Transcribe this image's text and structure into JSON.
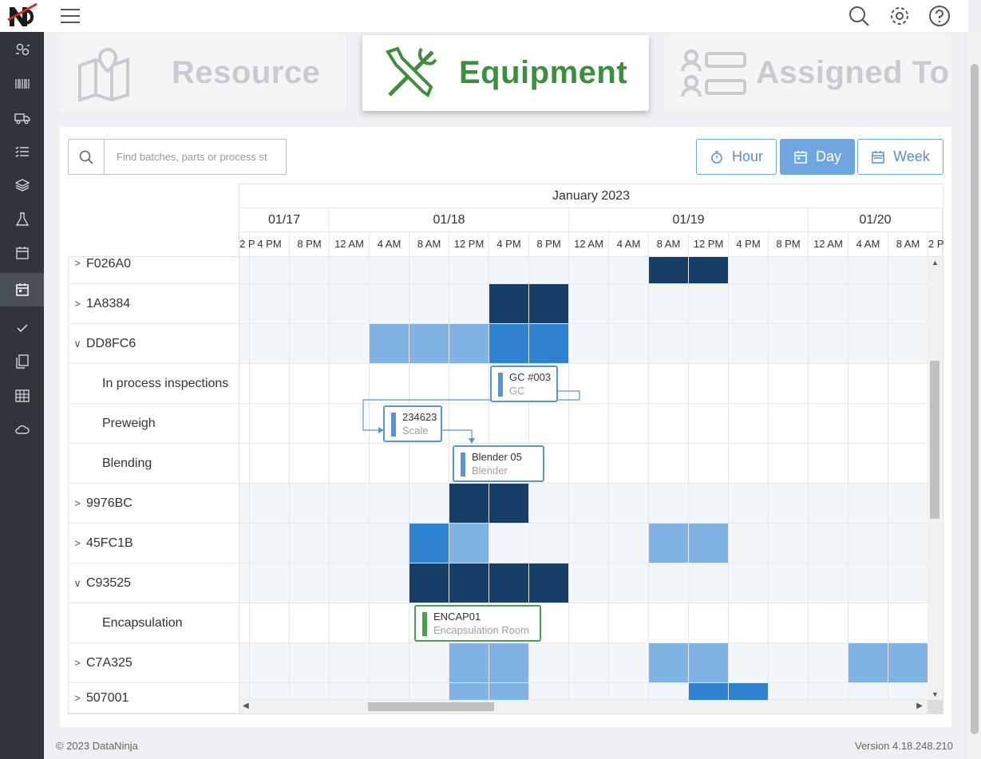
{
  "tabs": {
    "resource": "Resource",
    "equipment": "Equipment",
    "assigned": "Assigned To"
  },
  "search": {
    "placeholder": "Find batches, parts or process st"
  },
  "view_buttons": {
    "hour": "Hour",
    "day": "Day",
    "week": "Week",
    "active": "Day"
  },
  "timeline": {
    "month": "January 2023",
    "days": [
      "01/17",
      "01/18",
      "01/19",
      "01/20"
    ],
    "hours": [
      "2 P",
      "4 PM",
      "8 PM",
      "12 AM",
      "4 AM",
      "8 AM",
      "12 PM",
      "4 PM",
      "8 PM",
      "12 AM",
      "4 AM",
      "8 AM",
      "12 PM",
      "4 PM",
      "8 PM",
      "12 AM",
      "4 AM",
      "8 AM",
      "2 P"
    ]
  },
  "rows": [
    {
      "label": "F026A0",
      "expandable": true,
      "expanded": false
    },
    {
      "label": "1A8384",
      "expandable": true,
      "expanded": false
    },
    {
      "label": "DD8FC6",
      "expandable": true,
      "expanded": true
    },
    {
      "label": "In process inspections",
      "child": true
    },
    {
      "label": "Preweigh",
      "child": true
    },
    {
      "label": "Blending",
      "child": true
    },
    {
      "label": "9976BC",
      "expandable": true,
      "expanded": false
    },
    {
      "label": "45FC1B",
      "expandable": true,
      "expanded": false
    },
    {
      "label": "C93525",
      "expandable": true,
      "expanded": true
    },
    {
      "label": "Encapsulation",
      "child": true
    },
    {
      "label": "C7A325",
      "expandable": true,
      "expanded": false
    },
    {
      "label": "507001",
      "expandable": true,
      "expanded": false
    }
  ],
  "tasks": {
    "gc": {
      "name": "GC #003",
      "type": "GC"
    },
    "scale": {
      "name": "234623",
      "type": "Scale"
    },
    "blender": {
      "name": "Blender 05",
      "type": "Blender"
    },
    "encap": {
      "name": "ENCAP01",
      "type": "Encapsulation Room"
    }
  },
  "colors": {
    "dark": "#163e66",
    "mid": "#2f82d0",
    "light": "#80b3e3",
    "accent_green": "#3d8f3d"
  },
  "footer": {
    "copyright": "© 2023 DataNinja",
    "version": "Version 4.18.248.210"
  }
}
